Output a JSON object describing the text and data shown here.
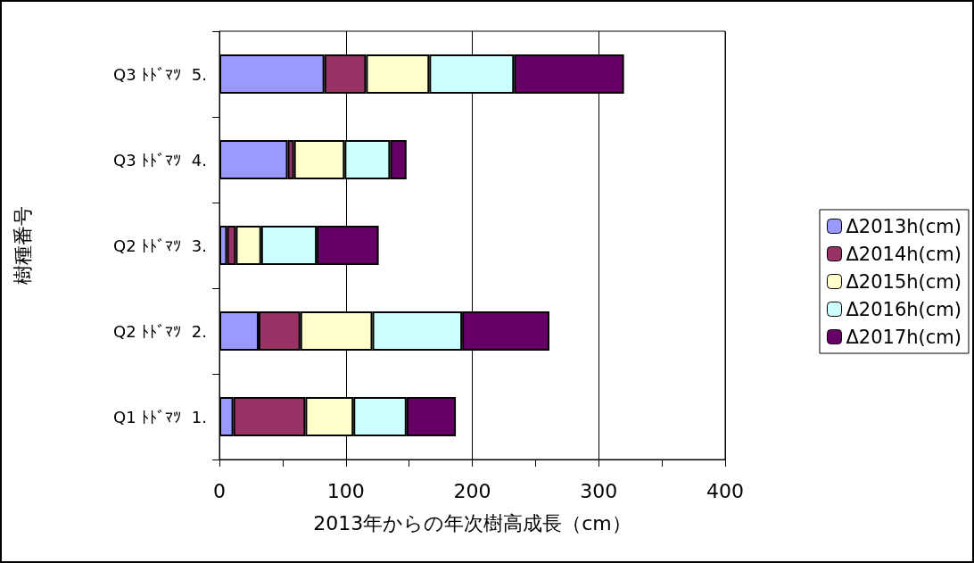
{
  "chart_data": {
    "type": "bar",
    "orientation": "horizontal",
    "stacked": true,
    "xlabel": "2013年からの年次樹高成長（cm）",
    "ylabel": "樹種番号",
    "categories": [
      "Q3 ﾄﾄﾞﾏﾂ  5.",
      "Q3 ﾄﾄﾞﾏﾂ  4.",
      "Q2 ﾄﾄﾞﾏﾂ  3.",
      "Q2 ﾄﾄﾞﾏﾂ  2.",
      "Q1 ﾄﾄﾞﾏﾂ  1."
    ],
    "series": [
      {
        "name": "Δ2013h(cm)",
        "color": "#9999ff",
        "values": [
          83,
          54,
          6,
          31,
          11
        ]
      },
      {
        "name": "Δ2014h(cm)",
        "color": "#993366",
        "values": [
          33,
          5,
          7,
          33,
          57
        ]
      },
      {
        "name": "Δ2015h(cm)",
        "color": "#ffffcc",
        "values": [
          50,
          40,
          20,
          57,
          38
        ]
      },
      {
        "name": "Δ2016h(cm)",
        "color": "#ccffff",
        "values": [
          67,
          36,
          44,
          71,
          42
        ]
      },
      {
        "name": "Δ2017h(cm)",
        "color": "#660066",
        "values": [
          87,
          13,
          49,
          69,
          39
        ]
      }
    ],
    "xlim": [
      0,
      400
    ],
    "xticks": [
      0,
      100,
      200,
      300,
      400
    ],
    "grid": "x",
    "legend": "right"
  }
}
